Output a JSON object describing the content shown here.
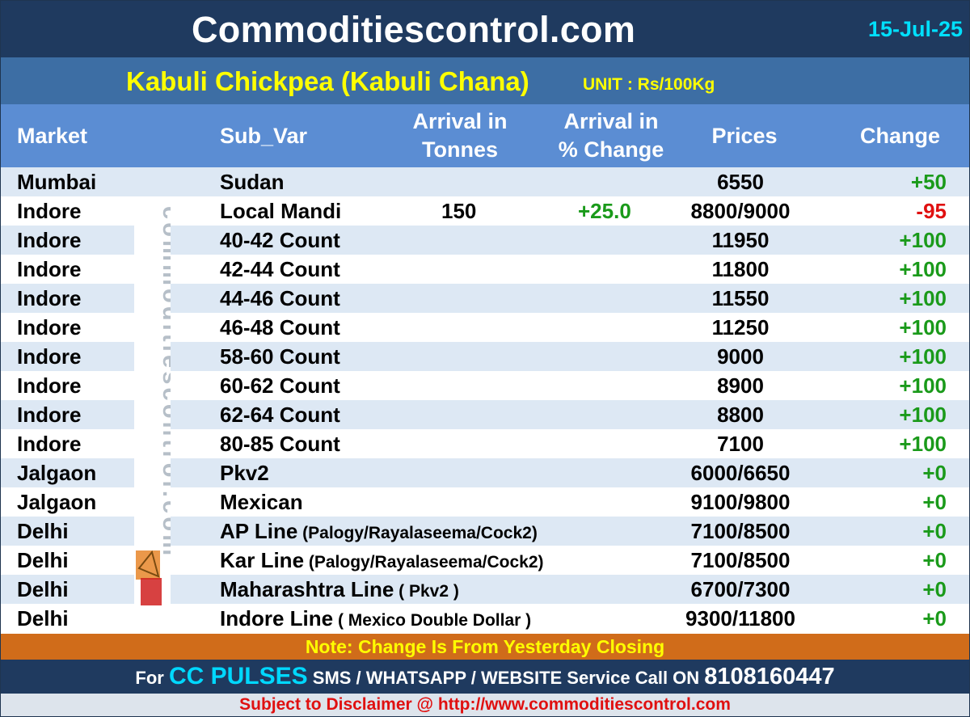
{
  "header": {
    "site": "Commoditiescontrol.com",
    "date": "15-Jul-25"
  },
  "subheader": {
    "title": "Kabuli Chickpea (Kabuli Chana)",
    "unit": "UNIT : Rs/100Kg"
  },
  "columns": {
    "market": "Market",
    "sub_var": "Sub_Var",
    "arrival_l1": "Arrival in",
    "arrival_l2": "Tonnes",
    "pct_l1": "Arrival  in",
    "pct_l2": "% Change",
    "prices": "Prices",
    "change": "Change"
  },
  "rows": [
    {
      "market": "Mumbai",
      "sub": "Sudan",
      "sub_note": "",
      "arrival": "",
      "pct": "",
      "price": "6550",
      "change": "+50"
    },
    {
      "market": "Indore",
      "sub": "Local Mandi",
      "sub_note": "",
      "arrival": "150",
      "pct": "+25.0",
      "price": "8800/9000",
      "change": "-95"
    },
    {
      "market": "Indore",
      "sub": "40-42 Count",
      "sub_note": "",
      "arrival": "",
      "pct": "",
      "price": "11950",
      "change": "+100"
    },
    {
      "market": "Indore",
      "sub": "42-44 Count",
      "sub_note": "",
      "arrival": "",
      "pct": "",
      "price": "11800",
      "change": "+100"
    },
    {
      "market": "Indore",
      "sub": "44-46 Count",
      "sub_note": "",
      "arrival": "",
      "pct": "",
      "price": "11550",
      "change": "+100"
    },
    {
      "market": "Indore",
      "sub": "46-48 Count",
      "sub_note": "",
      "arrival": "",
      "pct": "",
      "price": "11250",
      "change": "+100"
    },
    {
      "market": "Indore",
      "sub": "58-60 Count",
      "sub_note": "",
      "arrival": "",
      "pct": "",
      "price": "9000",
      "change": "+100"
    },
    {
      "market": "Indore",
      "sub": "60-62 Count",
      "sub_note": "",
      "arrival": "",
      "pct": "",
      "price": "8900",
      "change": "+100"
    },
    {
      "market": "Indore",
      "sub": "62-64 Count",
      "sub_note": "",
      "arrival": "",
      "pct": "",
      "price": "8800",
      "change": "+100"
    },
    {
      "market": "Indore",
      "sub": "80-85 Count",
      "sub_note": "",
      "arrival": "",
      "pct": "",
      "price": "7100",
      "change": "+100"
    },
    {
      "market": "Jalgaon",
      "sub": "Pkv2",
      "sub_note": "",
      "arrival": "",
      "pct": "",
      "price": "6000/6650",
      "change": "+0"
    },
    {
      "market": "Jalgaon",
      "sub": "Mexican",
      "sub_note": "",
      "arrival": "",
      "pct": "",
      "price": "9100/9800",
      "change": "+0"
    },
    {
      "market": "Delhi",
      "sub": "AP Line",
      "sub_note": " (Palogy/Rayalaseema/Cock2)",
      "arrival": "",
      "pct": "",
      "price": "7100/8500",
      "change": "+0"
    },
    {
      "market": "Delhi",
      "sub": "Kar Line",
      "sub_note": " (Palogy/Rayalaseema/Cock2)",
      "arrival": "",
      "pct": "",
      "price": "7100/8500",
      "change": "+0"
    },
    {
      "market": "Delhi",
      "sub": "Maharashtra Line",
      "sub_note": " ( Pkv2 )",
      "arrival": "",
      "pct": "",
      "price": "6700/7300",
      "change": "+0"
    },
    {
      "market": "Delhi",
      "sub": "Indore Line",
      "sub_note": " ( Mexico Double Dollar )",
      "arrival": "",
      "pct": "",
      "price": "9300/11800",
      "change": "+0"
    }
  ],
  "watermark": "commoditiescontrol.com",
  "note": "Note: Change Is From Yesterday Closing",
  "footer": {
    "prefix": "For ",
    "cc": "CC PULSES",
    "middle": " SMS / WHATSAPP / WEBSITE Service Call  ON ",
    "phone": "8108160447"
  },
  "disclaimer": "Subject to Disclaimer @  http://www.commoditiescontrol.com",
  "colors": {
    "header_bg": "#1f3a5f",
    "title_yellow": "#ffff00",
    "date_cyan": "#00e0ff",
    "col_header_bg": "#5b8dd3",
    "alt_row": "#dde8f4",
    "positive": "#1a9a1a",
    "negative": "#e01010",
    "note_bg": "#d06c1a"
  }
}
